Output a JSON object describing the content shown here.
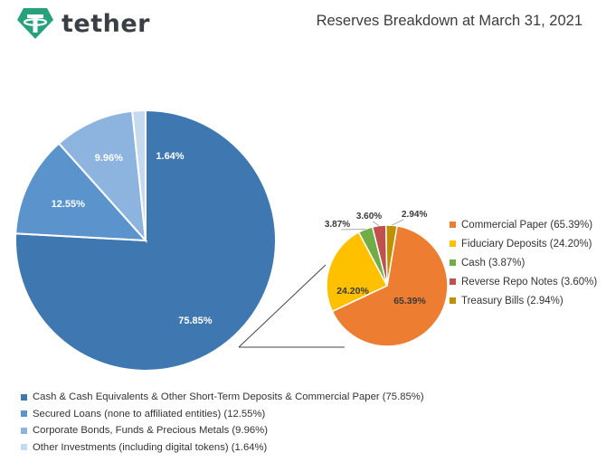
{
  "header": {
    "brand": "tether",
    "title": "Reserves Breakdown at March 31, 2021"
  },
  "colors": {
    "brand_teal": "#26a17b",
    "main": [
      "#3f77b1",
      "#5b93cc",
      "#8db4df",
      "#c5d9ef"
    ],
    "sub": [
      "#ed7d31",
      "#ffc000",
      "#70ad47",
      "#c0504d",
      "#bf9000"
    ]
  },
  "chart_data": [
    {
      "type": "pie",
      "title": "",
      "slices": [
        {
          "label": "Cash & Cash Equivalents & Other Short-Term Deposits & Commercial Paper (75.85%)",
          "value": 75.85,
          "data_label": "75.85%"
        },
        {
          "label": "Secured Loans (none to affiliated entities) (12.55%)",
          "value": 12.55,
          "data_label": "12.55%"
        },
        {
          "label": "Corporate Bonds, Funds & Precious Metals (9.96%)",
          "value": 9.96,
          "data_label": "9.96%"
        },
        {
          "label": "Other Investments (including digital tokens) (1.64%)",
          "value": 1.64,
          "data_label": "1.64%"
        }
      ],
      "legend": "bottom"
    },
    {
      "type": "pie",
      "title": "",
      "breakdown_of": "Cash & Cash Equivalents & Other Short-Term Deposits & Commercial Paper (75.85%)",
      "slices": [
        {
          "label": "Commercial Paper (65.39%)",
          "value": 65.39,
          "data_label": "65.39%"
        },
        {
          "label": "Fiduciary Deposits (24.20%)",
          "value": 24.2,
          "data_label": "24.20%"
        },
        {
          "label": "Cash (3.87%)",
          "value": 3.87,
          "data_label": "3.87%"
        },
        {
          "label": "Reverse Repo Notes (3.60%)",
          "value": 3.6,
          "data_label": "3.60%"
        },
        {
          "label": "Treasury Bills (2.94%)",
          "value": 2.94,
          "data_label": "2.94%"
        }
      ],
      "legend": "right"
    }
  ]
}
